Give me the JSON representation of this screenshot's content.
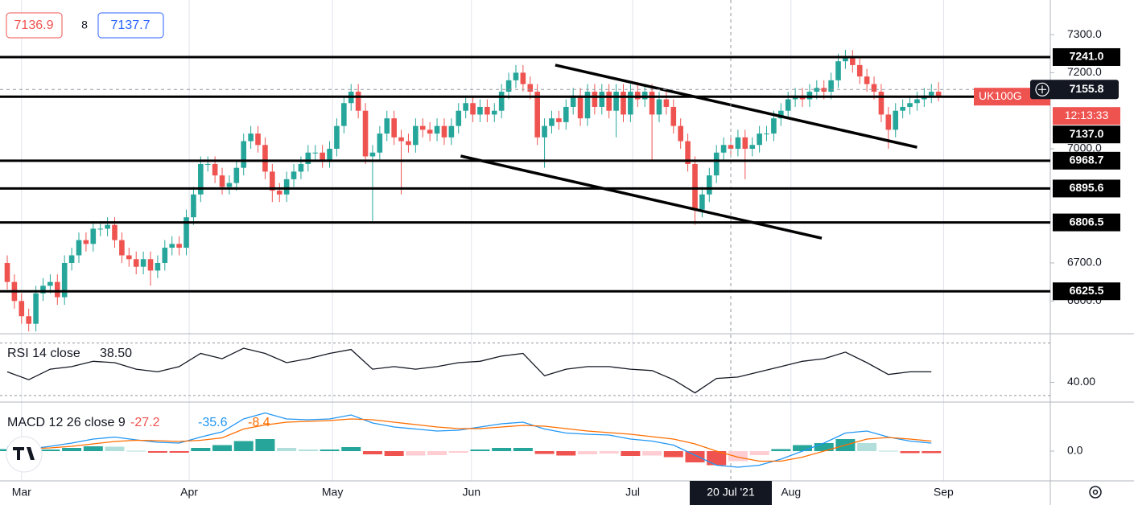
{
  "chart_data": [
    {
      "type": "candlestick",
      "header": {
        "bid": 7136.9,
        "spread": 8,
        "ask": 7137.7
      },
      "xlim": [
        -1.01,
        145.6
      ],
      "xticks": [
        {
          "value": 2,
          "label": "Mar"
        },
        {
          "value": 25.4,
          "label": "Apr"
        },
        {
          "value": 45.4,
          "label": "May"
        },
        {
          "value": 64.8,
          "label": "Jun"
        },
        {
          "value": 87.3,
          "label": "Jul"
        },
        {
          "value": 109.4,
          "label": "Aug"
        },
        {
          "value": 130.7,
          "label": "Sep"
        }
      ],
      "ylim": [
        6514,
        7391
      ],
      "yticks": [
        {
          "value": 7300,
          "label": "7300.0"
        },
        {
          "value": 7200,
          "label": "7200.0"
        },
        {
          "value": 7000,
          "label": "7000.0"
        },
        {
          "value": 6700,
          "label": "6700.0"
        },
        {
          "value": 6600,
          "label": "6600.0"
        }
      ],
      "up_color": "#26a69a",
      "down_color": "#ef5350",
      "open": [
        6700,
        6650,
        6600,
        6560,
        6540,
        6620,
        6640,
        6650,
        6610,
        6700,
        6720,
        6760,
        6750,
        6790,
        6790,
        6800,
        6760,
        6720,
        6710,
        6690,
        6710,
        6680,
        6700,
        6740,
        6750,
        6740,
        6820,
        6880,
        6960,
        6960,
        6930,
        6900,
        6910,
        6950,
        7020,
        7040,
        7010,
        6940,
        6890,
        6880,
        6920,
        6940,
        6960,
        6990,
        6990,
        6970,
        7000,
        7060,
        7120,
        7150,
        7100,
        6980,
        6990,
        7040,
        7080,
        7030,
        7020,
        7010,
        7060,
        7050,
        7040,
        7060,
        7030,
        7060,
        7100,
        7120,
        7090,
        7110,
        7090,
        7100,
        7150,
        7180,
        7200,
        7170,
        7150,
        7030,
        7060,
        7080,
        7070,
        7110,
        7140,
        7080,
        7150,
        7110,
        7150,
        7100,
        7150,
        7090,
        7150,
        7130,
        7150,
        7090,
        7130,
        7110,
        7060,
        7020,
        6960,
        6840,
        6880,
        6930,
        6990,
        7010,
        7000,
        7030,
        7000,
        7010,
        7040,
        7040,
        7080,
        7100,
        7130,
        7140,
        7130,
        7150,
        7160,
        7150,
        7180,
        7230,
        7240,
        7220,
        7190,
        7170,
        7150,
        7090,
        7050,
        7100,
        7110,
        7120,
        7130,
        7140,
        7150
      ],
      "high": [
        6720,
        6670,
        6620,
        6580,
        6640,
        6660,
        6670,
        6670,
        6720,
        6740,
        6780,
        6780,
        6810,
        6810,
        6820,
        6820,
        6780,
        6740,
        6730,
        6730,
        6730,
        6720,
        6760,
        6770,
        6770,
        6840,
        6900,
        6980,
        6980,
        6980,
        6950,
        6930,
        6970,
        7040,
        7060,
        7060,
        7030,
        6960,
        6910,
        6940,
        6960,
        6980,
        7010,
        7010,
        7010,
        7020,
        7080,
        7140,
        7170,
        7170,
        7120,
        7010,
        7060,
        7100,
        7100,
        7050,
        7040,
        7080,
        7080,
        7070,
        7080,
        7080,
        7080,
        7120,
        7140,
        7140,
        7130,
        7130,
        7120,
        7170,
        7200,
        7220,
        7220,
        7190,
        7170,
        7080,
        7100,
        7100,
        7130,
        7160,
        7160,
        7170,
        7170,
        7170,
        7170,
        7170,
        7170,
        7170,
        7170,
        7170,
        7170,
        7150,
        7150,
        7130,
        7080,
        7040,
        6980,
        6900,
        6950,
        7010,
        7030,
        7030,
        7050,
        7050,
        7030,
        7060,
        7060,
        7100,
        7120,
        7150,
        7160,
        7160,
        7170,
        7180,
        7180,
        7200,
        7250,
        7260,
        7260,
        7240,
        7210,
        7190,
        7170,
        7110,
        7120,
        7130,
        7140,
        7150,
        7160,
        7170,
        7175
      ],
      "low": [
        6630,
        6580,
        6540,
        6520,
        6520,
        6600,
        6620,
        6590,
        6590,
        6680,
        6700,
        6730,
        6730,
        6770,
        6770,
        6740,
        6700,
        6690,
        6670,
        6670,
        6640,
        6660,
        6680,
        6720,
        6720,
        6720,
        6800,
        6860,
        6940,
        6910,
        6880,
        6880,
        6890,
        6930,
        7000,
        6990,
        6920,
        6860,
        6860,
        6860,
        6900,
        6920,
        6940,
        6970,
        6950,
        6950,
        6980,
        7040,
        7100,
        7080,
        6960,
        6810,
        6970,
        7020,
        7010,
        6880,
        6990,
        6990,
        7030,
        7020,
        7020,
        7010,
        7010,
        7040,
        7080,
        7070,
        7070,
        7070,
        7070,
        7080,
        7130,
        7160,
        7150,
        7130,
        7010,
        6950,
        7040,
        7050,
        7050,
        7090,
        7060,
        7060,
        7090,
        7090,
        7080,
        7030,
        7070,
        7070,
        7110,
        7110,
        6970,
        7070,
        7090,
        7040,
        7000,
        6940,
        6800,
        6820,
        6860,
        6910,
        6970,
        6980,
        6980,
        6920,
        6980,
        6990,
        7020,
        7020,
        7060,
        7080,
        7110,
        7110,
        7110,
        7130,
        7130,
        7130,
        7160,
        7210,
        7200,
        7170,
        7150,
        7130,
        7070,
        7000,
        7030,
        7080,
        7090,
        7100,
        7110,
        7120,
        7125
      ],
      "close": [
        6650,
        6600,
        6560,
        6540,
        6620,
        6640,
        6650,
        6610,
        6700,
        6720,
        6760,
        6750,
        6790,
        6790,
        6800,
        6760,
        6720,
        6710,
        6690,
        6710,
        6680,
        6700,
        6740,
        6750,
        6740,
        6820,
        6880,
        6960,
        6960,
        6930,
        6900,
        6910,
        6950,
        7020,
        7040,
        7010,
        6940,
        6890,
        6880,
        6920,
        6940,
        6960,
        6990,
        6990,
        6970,
        7000,
        7060,
        7120,
        7150,
        7100,
        6980,
        6990,
        7040,
        7080,
        7030,
        7020,
        7010,
        7060,
        7050,
        7040,
        7060,
        7030,
        7060,
        7100,
        7120,
        7090,
        7110,
        7090,
        7100,
        7150,
        7180,
        7200,
        7170,
        7150,
        7030,
        7060,
        7080,
        7070,
        7110,
        7140,
        7080,
        7150,
        7110,
        7150,
        7100,
        7150,
        7090,
        7150,
        7130,
        7150,
        7090,
        7130,
        7110,
        7060,
        7020,
        6960,
        6840,
        6880,
        6930,
        6990,
        7010,
        7000,
        7030,
        7000,
        7010,
        7040,
        7040,
        7080,
        7100,
        7130,
        7140,
        7130,
        7150,
        7160,
        7150,
        7180,
        7230,
        7240,
        7220,
        7190,
        7170,
        7150,
        7090,
        7050,
        7100,
        7110,
        7120,
        7130,
        7140,
        7150,
        7137
      ],
      "levels": [
        {
          "value": 7241.0,
          "label": "7241.0"
        },
        {
          "value": 7137.0,
          "label": "7137.0"
        },
        {
          "value": 6968.7,
          "label": "6968.7"
        },
        {
          "value": 6895.6,
          "label": "6895.6"
        },
        {
          "value": 6806.5,
          "label": "6806.5"
        },
        {
          "value": 6625.5,
          "label": "6625.5"
        }
      ],
      "trend_lines": [
        {
          "x": [
            76.5,
            127
          ],
          "y": [
            7220,
            7004
          ]
        },
        {
          "x": [
            63.3,
            113.7
          ],
          "y": [
            6981,
            6765
          ]
        }
      ],
      "price_tag": {
        "symbol": "UK100G",
        "countdown": "12:13:33",
        "color": "#ef5350"
      },
      "crosshair": {
        "x": 101,
        "label": "20 Jul '21",
        "price": 7155.8
      }
    },
    {
      "type": "line",
      "title": "RSI 14 close",
      "legend_value": "38.50",
      "color": "#131722",
      "ylim": [
        25,
        77
      ],
      "yticks": [
        {
          "value": 40,
          "label": "40.00"
        }
      ],
      "levels": [
        30,
        70
      ],
      "x": [
        0,
        3,
        6,
        9,
        12,
        15,
        18,
        21,
        24,
        27,
        30,
        33,
        36,
        39,
        42,
        45,
        48,
        51,
        54,
        57,
        60,
        63,
        66,
        69,
        72,
        75,
        78,
        81,
        84,
        87,
        90,
        93,
        96,
        99,
        102,
        105,
        108,
        111,
        114,
        117,
        120,
        123,
        126,
        129
      ],
      "values": [
        48,
        42,
        50,
        52,
        56,
        55,
        50,
        48,
        52,
        62,
        58,
        66,
        62,
        55,
        58,
        62,
        65,
        50,
        52,
        50,
        52,
        55,
        56,
        60,
        62,
        45,
        50,
        52,
        52,
        50,
        49,
        42,
        32,
        43,
        44,
        48,
        52,
        56,
        58,
        63,
        55,
        46,
        48,
        48
      ]
    },
    {
      "type": "macd",
      "title": "MACD 12 26 close 9",
      "ylim": [
        -74,
        122
      ],
      "yticks": [
        {
          "value": 0,
          "label": "0.0"
        }
      ],
      "x": [
        0,
        3,
        6,
        9,
        12,
        15,
        18,
        21,
        24,
        27,
        30,
        33,
        36,
        39,
        42,
        45,
        48,
        51,
        54,
        57,
        60,
        63,
        66,
        69,
        72,
        75,
        78,
        81,
        84,
        87,
        90,
        93,
        96,
        99,
        102,
        105,
        108,
        111,
        114,
        117,
        120,
        123,
        126,
        129
      ],
      "series": [
        {
          "kind": "histogram",
          "color": "#ef5350",
          "current": -27.2,
          "values": [
            5,
            -1,
            4,
            8,
            12,
            11,
            1,
            -4,
            -4,
            8,
            15,
            25,
            30,
            8,
            4,
            4,
            10,
            -8,
            -12,
            -11,
            -10,
            -4,
            4,
            8,
            8,
            -7,
            -11,
            -8,
            -6,
            -12,
            -11,
            -15,
            -28,
            -35,
            -25,
            -10,
            5,
            15,
            20,
            30,
            20,
            1,
            -5,
            -5
          ]
        },
        {
          "kind": "line",
          "color": "#2196f3",
          "current": -35.6,
          "values": [
            10,
            5,
            12,
            20,
            30,
            35,
            28,
            22,
            20,
            35,
            48,
            80,
            95,
            80,
            78,
            80,
            90,
            70,
            60,
            55,
            50,
            52,
            60,
            68,
            72,
            55,
            45,
            42,
            40,
            30,
            25,
            15,
            -10,
            -35,
            -40,
            -35,
            -20,
            0,
            20,
            45,
            50,
            35,
            25,
            20
          ]
        },
        {
          "kind": "line",
          "color": "#ff6d00",
          "current": -8.4,
          "values": [
            5,
            6,
            8,
            12,
            18,
            24,
            27,
            26,
            24,
            27,
            33,
            55,
            65,
            72,
            74,
            76,
            80,
            78,
            72,
            66,
            60,
            56,
            56,
            60,
            64,
            62,
            56,
            50,
            46,
            42,
            36,
            30,
            18,
            0,
            -15,
            -25,
            -25,
            -15,
            0,
            15,
            30,
            34,
            30,
            25
          ]
        }
      ]
    }
  ]
}
